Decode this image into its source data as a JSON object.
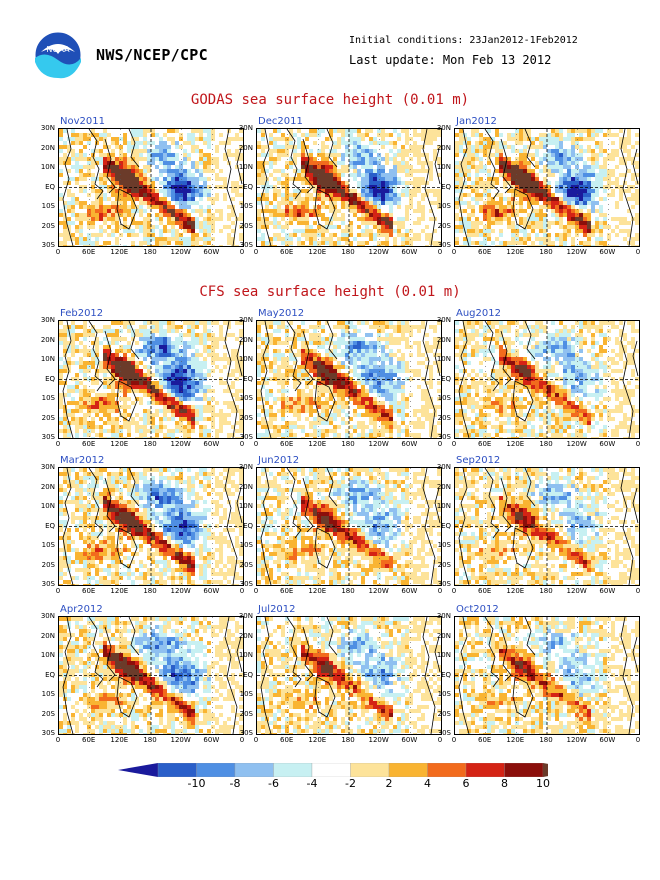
{
  "header": {
    "org": "NWS/NCEP/CPC",
    "initial_conditions": "Initial conditions: 23Jan2012-1Feb2012",
    "last_update": "Last update: Mon Feb 13 2012",
    "logo_text": "NOAA"
  },
  "sections": {
    "godas_title": "GODAS sea surface height (0.01 m)",
    "cfs_title": "CFS sea surface height (0.01 m)"
  },
  "lat_labels": [
    "30N",
    "20N",
    "10N",
    "EQ",
    "10S",
    "20S",
    "30S"
  ],
  "lon_labels": [
    "0",
    "60E",
    "120E",
    "180",
    "120W",
    "60W",
    "0"
  ],
  "panels": [
    {
      "label": "Nov2011",
      "kind": "godas",
      "intensity": 1.0
    },
    {
      "label": "Dec2011",
      "kind": "godas",
      "intensity": 1.0
    },
    {
      "label": "Jan2012",
      "kind": "godas",
      "intensity": 1.0
    },
    {
      "label": "Feb2012",
      "kind": "cfs",
      "intensity": 1.0
    },
    {
      "label": "May2012",
      "kind": "cfs",
      "intensity": 0.75
    },
    {
      "label": "Aug2012",
      "kind": "cfs",
      "intensity": 0.6
    },
    {
      "label": "Mar2012",
      "kind": "cfs",
      "intensity": 0.9
    },
    {
      "label": "Jun2012",
      "kind": "cfs",
      "intensity": 0.65
    },
    {
      "label": "Sep2012",
      "kind": "cfs",
      "intensity": 0.55
    },
    {
      "label": "Apr2012",
      "kind": "cfs",
      "intensity": 0.85
    },
    {
      "label": "Jul2012",
      "kind": "cfs",
      "intensity": 0.6
    },
    {
      "label": "Oct2012",
      "kind": "cfs",
      "intensity": 0.55
    }
  ],
  "colorbar": {
    "labels": [
      "-10",
      "-8",
      "-6",
      "-4",
      "-2",
      "2",
      "4",
      "6",
      "8",
      "10"
    ],
    "colors": [
      "#1a1a9c",
      "#2a5fc9",
      "#4f8fe3",
      "#8fc0f0",
      "#c7f0f2",
      "#ffffff",
      "#fde39a",
      "#f9b432",
      "#f26b1d",
      "#d42315",
      "#8b0f0b",
      "#6b3b2a"
    ]
  }
}
